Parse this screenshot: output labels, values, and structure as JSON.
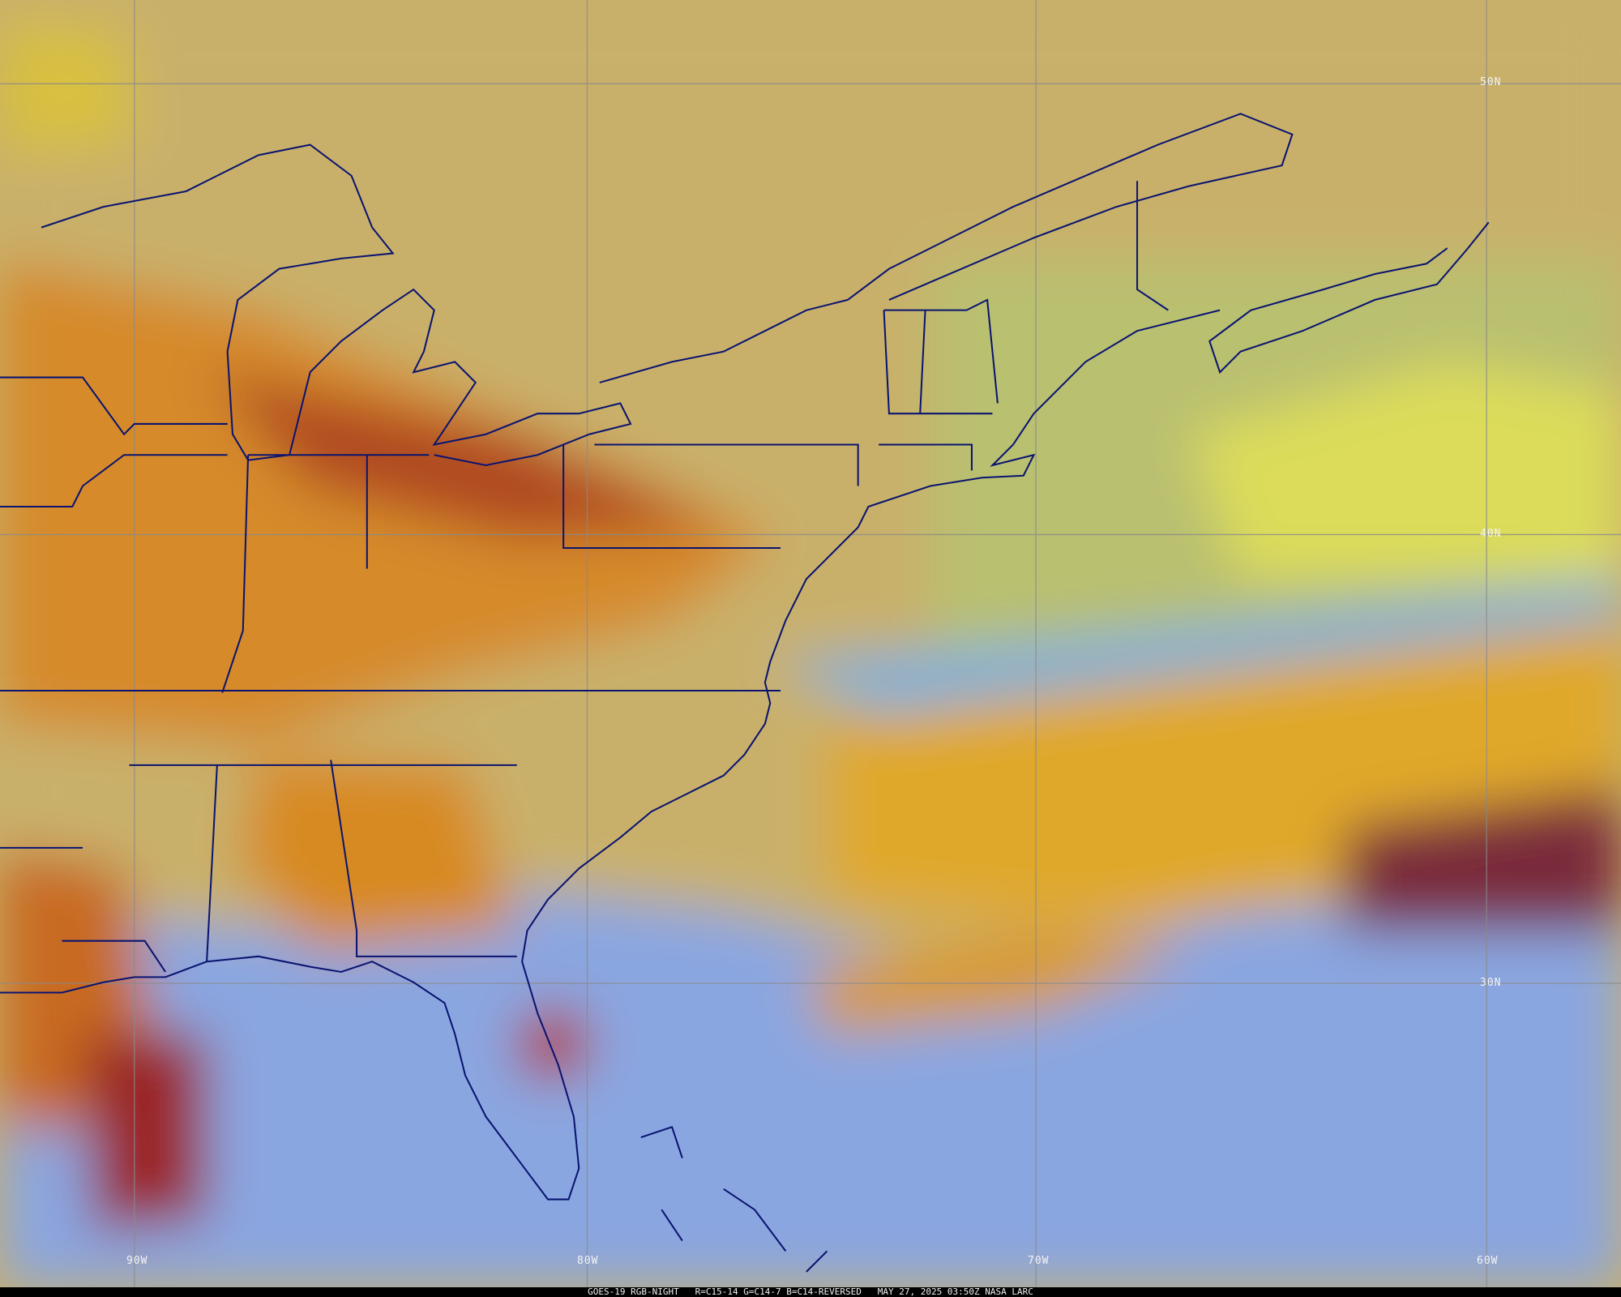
{
  "caption": {
    "satellite": "GOES-19 RGB-NIGHT",
    "channels": "R=C15-14 G=C14-7 B=C14-REVERSED",
    "timestamp": "MAY 27, 2025 03:50Z NASA LARC"
  },
  "graticule": {
    "latitudes": [
      "50N",
      "40N",
      "30N"
    ],
    "longitudes": [
      "90W",
      "80W",
      "70W",
      "60W"
    ]
  },
  "colors": {
    "boundaries": "#0a1470",
    "grid": "#8a8a8a",
    "clear_land": "#c9b06a",
    "clear_ocean": "#7fa0e0",
    "high_cloud": "#e8a020",
    "deep_cloud": "#8a1a1a",
    "low_cloud": "#d8d84a"
  }
}
